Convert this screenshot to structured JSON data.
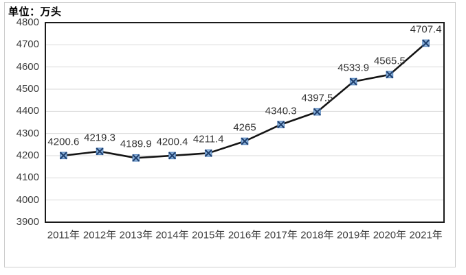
{
  "chart": {
    "unit_label": "单位：万头",
    "colors": {
      "frame_border": "#cccccc",
      "plot_border": "#1a1a1a",
      "grid": "#d9d9d9",
      "line": "#141414",
      "marker_fill": "#8fb4da",
      "marker_edge": "#4f81bd",
      "marker_x": "#1f3f6e",
      "axis_text": "#3d3d3d",
      "data_label_text": "#333333",
      "background": "#ffffff"
    }
  },
  "chart_data": {
    "type": "line",
    "title": "",
    "unit_label": "单位：万头",
    "categories": [
      "2011年",
      "2012年",
      "2013年",
      "2014年",
      "2015年",
      "2016年",
      "2017年",
      "2018年",
      "2019年",
      "2020年",
      "2021年"
    ],
    "values": [
      4200.6,
      4219.3,
      4189.9,
      4200.4,
      4211.4,
      4265,
      4340.3,
      4397.5,
      4533.9,
      4565.5,
      4707.4
    ],
    "point_labels": [
      "4200.6",
      "4219.3",
      "4189.9",
      "4200.4",
      "4211.4",
      "4265",
      "4340.3",
      "4397.5",
      "4533.9",
      "4565.5",
      "4707.4"
    ],
    "yticks": [
      "4800",
      "4700",
      "4600",
      "4500",
      "4400",
      "4300",
      "4200",
      "4100",
      "4000",
      "3900"
    ],
    "ylim": [
      3900,
      4800
    ],
    "xlabel": "",
    "ylabel": "",
    "grid": true,
    "legend_position": "none",
    "marker_style": "x-square",
    "line_shape": "straight"
  }
}
